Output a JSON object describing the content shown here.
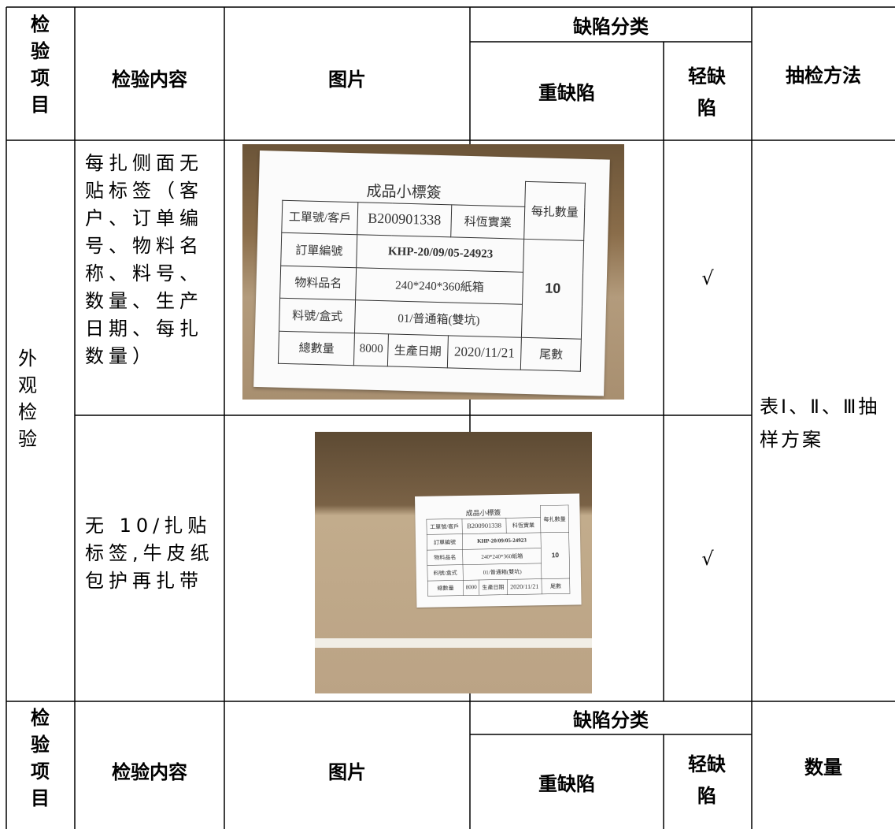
{
  "header": {
    "item": "检验项目",
    "content": "检验内容",
    "image": "图片",
    "defect_class": "缺陷分类",
    "major": "重缺陷",
    "minor": "轻缺陷",
    "method": "抽检方法"
  },
  "group": "外观检验",
  "method_value": "表Ⅰ、Ⅱ、Ⅲ抽样方案",
  "rows": [
    {
      "content": "每扎侧面无贴标签（客户、订单编号、物料名称、料号、数量、生产日期、每扎数量）",
      "minor": "√"
    },
    {
      "content": "无 10/扎贴标签,牛皮纸包护再扎带",
      "minor": "√"
    }
  ],
  "label_card": {
    "title": "成品小標簽",
    "order_customer": "工單號/客戶",
    "order_no": "B200901338",
    "customer": "科恆實業",
    "per_bundle": "每扎數量",
    "po_label": "訂單編號",
    "po": "KHP-20/09/05-24923",
    "material_label": "物料品名",
    "material": "240*240*360紙箱",
    "bundle_qty": "10",
    "part_label": "料號/盒式",
    "part": "01/普通箱(雙坑)",
    "total_label": "總數量",
    "total": "8000",
    "date_label": "生產日期",
    "date": "2020/11/21",
    "remainder": "尾數"
  },
  "header2": {
    "item": "检验项目",
    "content": "检验内容",
    "image": "图片",
    "defect_class": "缺陷分类",
    "major": "重缺陷",
    "minor": "轻缺陷",
    "quantity": "数量"
  }
}
